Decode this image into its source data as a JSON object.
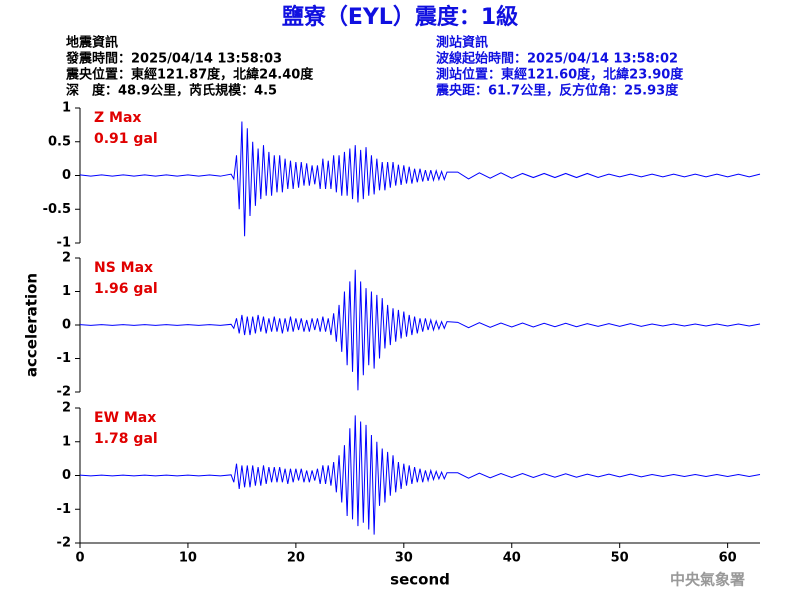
{
  "header": {
    "title": "鹽寮（EYL）震度：1級",
    "left": [
      "地震資訊",
      "發震時間：2025/04/14 13:58:03",
      "震央位置：東經121.87度，北緯24.40度",
      "深　度：48.9公里，芮氏規模：4.5"
    ],
    "right": [
      "測站資訊",
      "波線起始時間：2025/04/14 13:58:02",
      "測站位置：東經121.60度，北緯23.90度",
      "震央距：61.7公里，反方位角：25.93度"
    ],
    "footer": "中央氣象署"
  },
  "chart_data": [
    {
      "type": "line",
      "annotation": [
        "Z Max",
        "0.91 gal"
      ],
      "x": [
        0,
        1,
        2,
        3,
        4,
        5,
        6,
        7,
        8,
        9,
        10,
        11,
        12,
        13,
        14,
        14.25,
        14.5,
        14.75,
        15,
        15.25,
        15.5,
        15.75,
        16,
        16.25,
        16.5,
        16.75,
        17,
        17.25,
        17.5,
        17.75,
        18,
        18.25,
        18.5,
        18.75,
        19,
        19.25,
        19.5,
        19.75,
        20,
        20.25,
        20.5,
        20.75,
        21,
        21.25,
        21.5,
        21.75,
        22,
        22.25,
        22.5,
        22.75,
        23,
        23.25,
        23.5,
        23.75,
        24,
        24.25,
        24.5,
        24.75,
        25,
        25.25,
        25.5,
        25.75,
        26,
        26.25,
        26.5,
        26.75,
        27,
        27.25,
        27.5,
        27.75,
        28,
        28.25,
        28.5,
        28.75,
        29,
        29.25,
        29.5,
        29.75,
        30,
        30.25,
        30.5,
        30.75,
        31,
        31.25,
        31.5,
        31.75,
        32,
        32.25,
        32.5,
        32.75,
        33,
        33.25,
        33.5,
        33.75,
        34,
        35,
        36,
        37,
        38,
        39,
        40,
        41,
        42,
        43,
        44,
        45,
        46,
        47,
        48,
        49,
        50,
        51,
        52,
        53,
        54,
        55,
        56,
        57,
        58,
        59,
        60,
        61,
        62,
        63
      ],
      "series": [
        {
          "color": "#0000ff",
          "values": [
            0.01,
            -0.01,
            0.01,
            -0.01,
            0.01,
            -0.01,
            0.01,
            -0.01,
            0.01,
            -0.01,
            0.01,
            -0.01,
            0.01,
            -0.01,
            0.02,
            -0.05,
            0.3,
            -0.5,
            0.8,
            -0.9,
            0.7,
            -0.6,
            0.5,
            -0.45,
            0.4,
            -0.35,
            0.45,
            -0.3,
            0.35,
            -0.3,
            0.3,
            -0.25,
            0.3,
            -0.25,
            0.25,
            -0.2,
            0.22,
            -0.2,
            0.2,
            -0.18,
            0.2,
            -0.15,
            0.18,
            -0.15,
            0.15,
            -0.13,
            0.15,
            -0.2,
            0.25,
            -0.2,
            0.22,
            -0.2,
            0.3,
            -0.25,
            0.3,
            -0.3,
            0.35,
            -0.3,
            0.4,
            -0.35,
            0.45,
            -0.4,
            0.38,
            -0.35,
            0.42,
            -0.3,
            0.3,
            -0.28,
            0.25,
            -0.22,
            0.2,
            -0.22,
            0.2,
            -0.18,
            0.2,
            -0.15,
            0.16,
            -0.14,
            0.15,
            -0.12,
            0.13,
            -0.12,
            0.1,
            -0.1,
            0.1,
            -0.09,
            0.08,
            -0.08,
            0.08,
            -0.07,
            0.07,
            -0.06,
            0.06,
            -0.06,
            0.05,
            0.05,
            -0.05,
            0.04,
            -0.04,
            0.04,
            -0.04,
            0.03,
            -0.03,
            0.03,
            -0.03,
            0.03,
            -0.03,
            0.03,
            -0.03,
            0.02,
            -0.02,
            0.02,
            -0.02,
            0.02,
            -0.02,
            0.02,
            -0.02,
            0.02,
            -0.02,
            0.02,
            -0.02,
            0.02,
            -0.02,
            0.02
          ]
        }
      ],
      "xlim": [
        0,
        63
      ],
      "ylim": [
        -1,
        1
      ],
      "yticks": [
        -1,
        -0.5,
        0,
        0.5,
        1
      ]
    },
    {
      "type": "line",
      "annotation": [
        "NS Max",
        "1.96 gal"
      ],
      "ylabel": "acceleration",
      "x": [
        0,
        1,
        2,
        3,
        4,
        5,
        6,
        7,
        8,
        9,
        10,
        11,
        12,
        13,
        14,
        14.25,
        14.5,
        14.75,
        15,
        15.25,
        15.5,
        15.75,
        16,
        16.25,
        16.5,
        16.75,
        17,
        17.25,
        17.5,
        17.75,
        18,
        18.25,
        18.5,
        18.75,
        19,
        19.25,
        19.5,
        19.75,
        20,
        20.25,
        20.5,
        20.75,
        21,
        21.25,
        21.5,
        21.75,
        22,
        22.25,
        22.5,
        22.75,
        23,
        23.25,
        23.5,
        23.75,
        24,
        24.25,
        24.5,
        24.75,
        25,
        25.25,
        25.5,
        25.75,
        26,
        26.25,
        26.5,
        26.75,
        27,
        27.25,
        27.5,
        27.75,
        28,
        28.25,
        28.5,
        28.75,
        29,
        29.25,
        29.5,
        29.75,
        30,
        30.25,
        30.5,
        30.75,
        31,
        31.25,
        31.5,
        31.75,
        32,
        32.25,
        32.5,
        32.75,
        33,
        33.25,
        33.5,
        33.75,
        34,
        35,
        36,
        37,
        38,
        39,
        40,
        41,
        42,
        43,
        44,
        45,
        46,
        47,
        48,
        49,
        50,
        51,
        52,
        53,
        54,
        55,
        56,
        57,
        58,
        59,
        60,
        61,
        62,
        63
      ],
      "series": [
        {
          "color": "#0000ff",
          "values": [
            0.01,
            -0.01,
            0.01,
            -0.01,
            0.01,
            -0.01,
            0.01,
            -0.01,
            0.01,
            -0.01,
            0.01,
            -0.01,
            0.01,
            -0.01,
            0.02,
            -0.1,
            0.2,
            -0.25,
            0.3,
            -0.3,
            0.25,
            -0.3,
            0.25,
            -0.25,
            0.3,
            -0.2,
            0.25,
            -0.25,
            0.2,
            -0.2,
            0.25,
            -0.2,
            0.2,
            -0.25,
            0.2,
            -0.2,
            0.25,
            -0.2,
            0.2,
            -0.15,
            0.2,
            -0.2,
            0.15,
            -0.2,
            0.2,
            -0.15,
            0.2,
            -0.2,
            0.25,
            -0.2,
            0.2,
            -0.3,
            0.35,
            -0.5,
            0.6,
            -0.8,
            1.0,
            -1.2,
            1.3,
            -1.4,
            1.65,
            -1.95,
            1.3,
            -1.5,
            1.1,
            -1.2,
            1.0,
            -1.3,
            0.9,
            -1.0,
            0.8,
            -0.7,
            0.6,
            -0.6,
            0.5,
            -0.5,
            0.45,
            -0.4,
            0.4,
            -0.35,
            0.3,
            -0.3,
            0.25,
            -0.25,
            0.2,
            -0.2,
            0.2,
            -0.15,
            0.15,
            -0.15,
            0.12,
            -0.12,
            0.1,
            -0.1,
            0.1,
            0.08,
            -0.08,
            0.07,
            -0.07,
            0.06,
            -0.06,
            0.06,
            -0.06,
            0.05,
            -0.05,
            0.05,
            -0.05,
            0.04,
            -0.04,
            0.04,
            -0.04,
            0.04,
            -0.04,
            0.03,
            -0.03,
            0.03,
            -0.03,
            0.03,
            -0.03,
            0.03,
            -0.03,
            0.03,
            -0.03,
            0.03
          ]
        }
      ],
      "xlim": [
        0,
        63
      ],
      "ylim": [
        -2,
        2
      ],
      "yticks": [
        -2,
        -1,
        0,
        1,
        2
      ]
    },
    {
      "type": "line",
      "annotation": [
        "EW Max",
        "1.78 gal"
      ],
      "xlabel": "second",
      "x": [
        0,
        1,
        2,
        3,
        4,
        5,
        6,
        7,
        8,
        9,
        10,
        11,
        12,
        13,
        14,
        14.25,
        14.5,
        14.75,
        15,
        15.25,
        15.5,
        15.75,
        16,
        16.25,
        16.5,
        16.75,
        17,
        17.25,
        17.5,
        17.75,
        18,
        18.25,
        18.5,
        18.75,
        19,
        19.25,
        19.5,
        19.75,
        20,
        20.25,
        20.5,
        20.75,
        21,
        21.25,
        21.5,
        21.75,
        22,
        22.25,
        22.5,
        22.75,
        23,
        23.25,
        23.5,
        23.75,
        24,
        24.25,
        24.5,
        24.75,
        25,
        25.25,
        25.5,
        25.75,
        26,
        26.25,
        26.5,
        26.75,
        27,
        27.25,
        27.5,
        27.75,
        28,
        28.25,
        28.5,
        28.75,
        29,
        29.25,
        29.5,
        29.75,
        30,
        30.25,
        30.5,
        30.75,
        31,
        31.25,
        31.5,
        31.75,
        32,
        32.25,
        32.5,
        32.75,
        33,
        33.25,
        33.5,
        33.75,
        34,
        35,
        36,
        37,
        38,
        39,
        40,
        41,
        42,
        43,
        44,
        45,
        46,
        47,
        48,
        49,
        50,
        51,
        52,
        53,
        54,
        55,
        56,
        57,
        58,
        59,
        60,
        61,
        62,
        63
      ],
      "series": [
        {
          "color": "#0000ff",
          "values": [
            0.01,
            -0.01,
            0.01,
            -0.01,
            0.01,
            -0.01,
            0.01,
            -0.01,
            0.01,
            -0.01,
            0.01,
            -0.01,
            0.01,
            -0.01,
            0.02,
            -0.2,
            0.35,
            -0.4,
            0.3,
            -0.35,
            0.3,
            -0.35,
            0.3,
            -0.3,
            0.25,
            -0.3,
            0.3,
            -0.25,
            0.25,
            -0.2,
            0.25,
            -0.2,
            0.25,
            -0.2,
            0.2,
            -0.25,
            0.2,
            -0.2,
            0.2,
            -0.15,
            0.2,
            -0.2,
            0.15,
            -0.2,
            0.15,
            -0.15,
            0.2,
            -0.25,
            0.3,
            -0.25,
            0.3,
            -0.3,
            0.4,
            -0.5,
            0.6,
            -0.8,
            0.9,
            -1.2,
            1.4,
            -1.3,
            1.78,
            -1.5,
            1.6,
            -1.4,
            1.5,
            -1.6,
            1.2,
            -1.75,
            1.0,
            -0.9,
            0.8,
            -0.8,
            0.7,
            -0.6,
            0.6,
            -0.5,
            0.4,
            -0.4,
            0.35,
            -0.3,
            0.3,
            -0.25,
            0.25,
            -0.2,
            0.2,
            -0.2,
            0.15,
            -0.15,
            0.15,
            -0.12,
            0.12,
            -0.1,
            0.1,
            -0.1,
            0.08,
            0.08,
            -0.08,
            0.07,
            -0.07,
            0.06,
            -0.06,
            0.06,
            -0.06,
            0.05,
            -0.05,
            0.05,
            -0.05,
            0.04,
            -0.04,
            0.04,
            -0.04,
            0.04,
            -0.04,
            0.03,
            -0.03,
            0.03,
            -0.03,
            0.03,
            -0.03,
            0.03,
            -0.03,
            0.03,
            -0.03,
            0.03
          ]
        }
      ],
      "xlim": [
        0,
        63
      ],
      "ylim": [
        -2,
        2
      ],
      "yticks": [
        -2,
        -1,
        0,
        1,
        2
      ],
      "xticks": [
        0,
        10,
        20,
        30,
        40,
        50,
        60
      ]
    }
  ]
}
